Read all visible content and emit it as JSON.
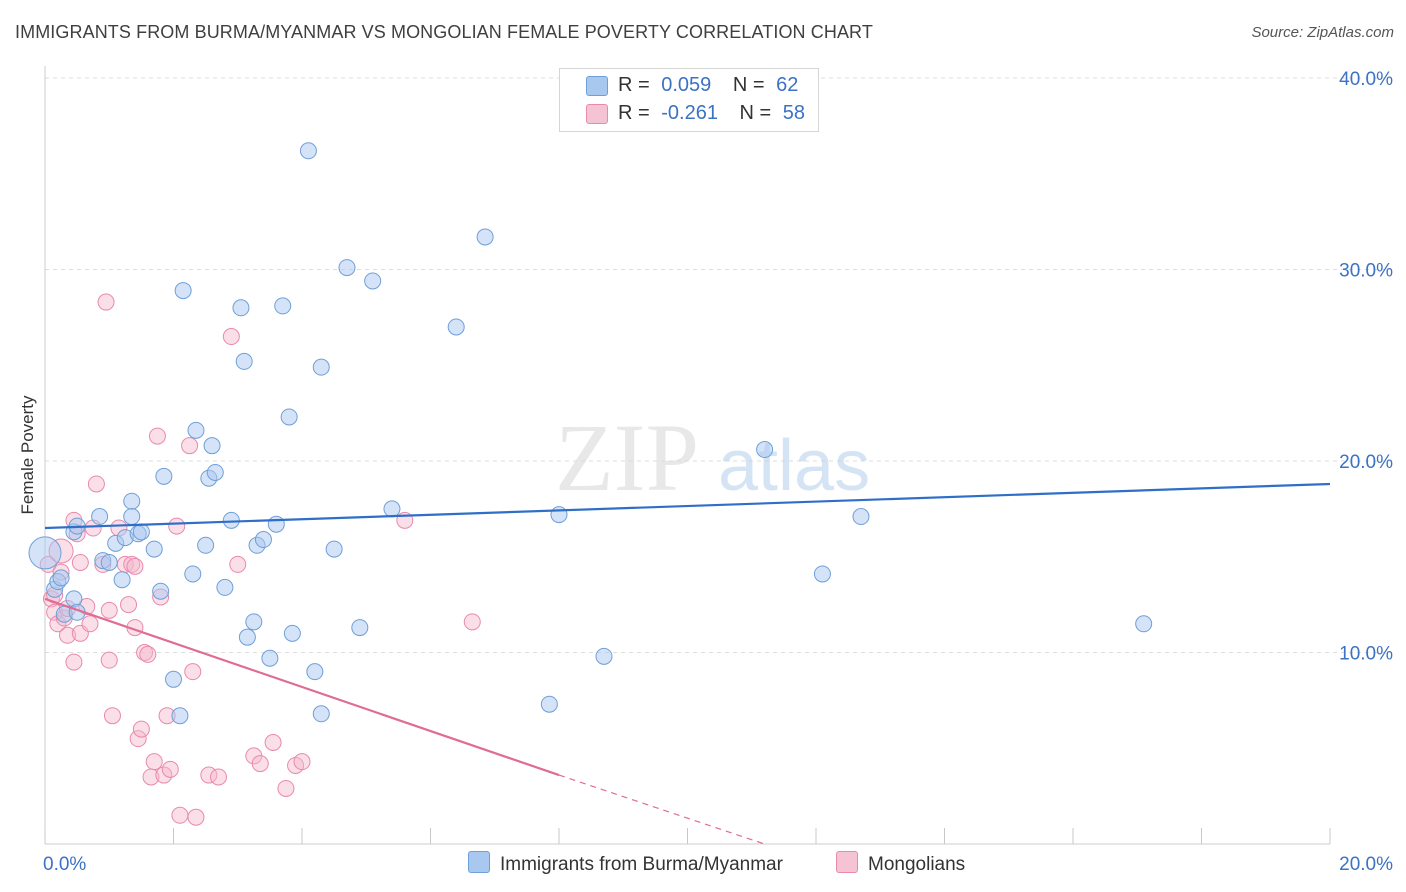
{
  "title": "IMMIGRANTS FROM BURMA/MYANMAR VS MONGOLIAN FEMALE POVERTY CORRELATION CHART",
  "source": "Source: ZipAtlas.com",
  "legend": {
    "series1": {
      "r_label": "R =",
      "r_value": "0.059",
      "n_label": "N =",
      "n_value": "62"
    },
    "series2": {
      "r_label": "R =",
      "r_value": "-0.261",
      "n_label": "N =",
      "n_value": "58"
    }
  },
  "bottom_legend": {
    "series1": "Immigrants from Burma/Myanmar",
    "series2": "Mongolians"
  },
  "colors": {
    "blue_fill": "#a9c8f0",
    "blue_stroke": "#6f9fd8",
    "blue_line": "#2f6fc8",
    "pink_fill": "#f5b8cc",
    "pink_stroke": "#e98aaa",
    "pink_line": "#e06c95",
    "tick_label": "#3b72c4",
    "grid": "#dddddd"
  },
  "watermark": {
    "zip": "ZIP",
    "atlas": "atlas"
  },
  "chart_data": {
    "type": "scatter",
    "title": "IMMIGRANTS FROM BURMA/MYANMAR VS MONGOLIAN FEMALE POVERTY CORRELATION CHART",
    "xlabel": "",
    "ylabel": "Female Poverty",
    "xlim": [
      0,
      20
    ],
    "ylim": [
      0,
      40
    ],
    "x_tick_labels": [
      "0.0%",
      "20.0%"
    ],
    "y_ticks": [
      10,
      20,
      30,
      40
    ],
    "y_tick_labels": [
      "10.0%",
      "20.0%",
      "30.0%",
      "40.0%"
    ],
    "grid": true,
    "series": [
      {
        "name": "Immigrants from Burma/Myanmar",
        "R": 0.059,
        "N": 62,
        "trend": {
          "x0": 0,
          "y0": 16.5,
          "x1": 20,
          "y1": 18.8
        },
        "points": [
          [
            0.0,
            15.2
          ],
          [
            0.15,
            13.3
          ],
          [
            0.2,
            13.7
          ],
          [
            0.25,
            13.9
          ],
          [
            0.3,
            12.0
          ],
          [
            0.45,
            12.8
          ],
          [
            0.5,
            12.1
          ],
          [
            0.45,
            16.3
          ],
          [
            0.5,
            16.6
          ],
          [
            0.85,
            17.1
          ],
          [
            0.9,
            14.8
          ],
          [
            1.0,
            14.7
          ],
          [
            1.1,
            15.7
          ],
          [
            1.2,
            13.8
          ],
          [
            1.25,
            16.0
          ],
          [
            1.35,
            17.9
          ],
          [
            1.35,
            17.1
          ],
          [
            1.45,
            16.2
          ],
          [
            1.5,
            16.3
          ],
          [
            1.7,
            15.4
          ],
          [
            1.8,
            13.2
          ],
          [
            1.85,
            19.2
          ],
          [
            2.0,
            8.6
          ],
          [
            2.1,
            6.7
          ],
          [
            2.15,
            28.9
          ],
          [
            2.3,
            14.1
          ],
          [
            2.35,
            21.6
          ],
          [
            2.5,
            15.6
          ],
          [
            2.55,
            19.1
          ],
          [
            2.6,
            20.8
          ],
          [
            2.65,
            19.4
          ],
          [
            2.8,
            13.4
          ],
          [
            2.9,
            16.9
          ],
          [
            3.05,
            28.0
          ],
          [
            3.1,
            25.2
          ],
          [
            3.15,
            10.8
          ],
          [
            3.25,
            11.6
          ],
          [
            3.3,
            15.6
          ],
          [
            3.4,
            15.9
          ],
          [
            3.5,
            9.7
          ],
          [
            3.6,
            16.7
          ],
          [
            3.7,
            28.1
          ],
          [
            3.8,
            22.3
          ],
          [
            3.85,
            11.0
          ],
          [
            4.1,
            36.2
          ],
          [
            4.2,
            9.0
          ],
          [
            4.3,
            24.9
          ],
          [
            4.3,
            6.8
          ],
          [
            4.5,
            15.4
          ],
          [
            4.7,
            30.1
          ],
          [
            4.9,
            11.3
          ],
          [
            5.1,
            29.4
          ],
          [
            5.4,
            17.5
          ],
          [
            6.4,
            27.0
          ],
          [
            6.85,
            31.7
          ],
          [
            7.85,
            7.3
          ],
          [
            8.0,
            17.2
          ],
          [
            8.7,
            9.8
          ],
          [
            11.2,
            20.6
          ],
          [
            12.1,
            14.1
          ],
          [
            12.7,
            17.1
          ],
          [
            17.1,
            11.5
          ]
        ]
      },
      {
        "name": "Mongolians",
        "R": -0.261,
        "N": 58,
        "trend": {
          "x0": 0,
          "y0": 12.8,
          "x1": 8.0,
          "y1": 3.6
        },
        "trend_dashed": {
          "x0": 8.0,
          "y0": 3.6,
          "x1": 11.2,
          "y1": 0.0
        },
        "points": [
          [
            0.05,
            14.6
          ],
          [
            0.1,
            12.8
          ],
          [
            0.15,
            13.0
          ],
          [
            0.15,
            12.1
          ],
          [
            0.2,
            11.5
          ],
          [
            0.25,
            14.2
          ],
          [
            0.3,
            11.8
          ],
          [
            0.35,
            12.3
          ],
          [
            0.35,
            10.9
          ],
          [
            0.45,
            9.5
          ],
          [
            0.45,
            16.9
          ],
          [
            0.5,
            16.2
          ],
          [
            0.55,
            14.7
          ],
          [
            0.55,
            11.0
          ],
          [
            0.65,
            12.4
          ],
          [
            0.7,
            11.5
          ],
          [
            0.75,
            16.5
          ],
          [
            0.8,
            18.8
          ],
          [
            0.9,
            14.6
          ],
          [
            0.95,
            28.3
          ],
          [
            1.0,
            12.2
          ],
          [
            1.0,
            9.6
          ],
          [
            1.05,
            6.7
          ],
          [
            1.15,
            16.5
          ],
          [
            1.25,
            14.6
          ],
          [
            1.3,
            12.5
          ],
          [
            1.35,
            14.6
          ],
          [
            1.4,
            11.3
          ],
          [
            1.45,
            5.5
          ],
          [
            1.5,
            6.0
          ],
          [
            1.55,
            10.0
          ],
          [
            1.6,
            9.9
          ],
          [
            1.65,
            3.5
          ],
          [
            1.7,
            4.3
          ],
          [
            1.75,
            21.3
          ],
          [
            1.8,
            12.9
          ],
          [
            1.85,
            3.6
          ],
          [
            1.9,
            6.7
          ],
          [
            1.95,
            3.9
          ],
          [
            2.05,
            16.6
          ],
          [
            2.1,
            1.5
          ],
          [
            2.25,
            20.8
          ],
          [
            2.3,
            9.0
          ],
          [
            2.35,
            1.4
          ],
          [
            2.55,
            3.6
          ],
          [
            2.7,
            3.5
          ],
          [
            2.9,
            26.5
          ],
          [
            3.0,
            14.6
          ],
          [
            3.25,
            4.6
          ],
          [
            3.35,
            4.2
          ],
          [
            3.55,
            5.3
          ],
          [
            3.75,
            2.9
          ],
          [
            3.9,
            4.1
          ],
          [
            4.0,
            4.3
          ],
          [
            5.6,
            16.9
          ],
          [
            6.65,
            11.6
          ],
          [
            1.4,
            14.5
          ],
          [
            0.25,
            15.3
          ]
        ]
      }
    ]
  }
}
